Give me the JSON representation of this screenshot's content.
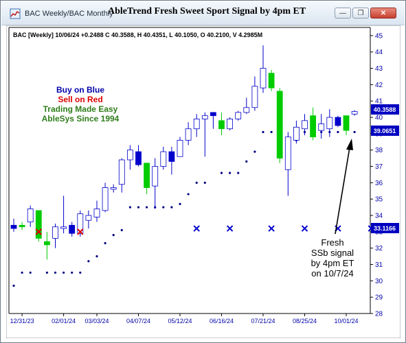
{
  "window": {
    "tab_title": "BAC Weekly/BAC Monthly",
    "title": "AbleTrend Fresh Sweet Sport Signal by 4pm ET",
    "buttons": [
      "minimize",
      "restore",
      "close"
    ]
  },
  "header": {
    "info": "BAC [Weekly] 10/06/24 +0.2488 C 40.3588, H 40.4351, L 40.1050, O 40.2100, V 4.2985M"
  },
  "legend": {
    "buy": "Buy on Blue",
    "sell": "Sell on Red",
    "tagline": "Trading Made Easy",
    "brand": "AbleSys Since 1994"
  },
  "annotation": {
    "lines": [
      "Fresh",
      "SSb signal",
      "by 4pm ET",
      "on 10/7/24"
    ]
  },
  "price_tags": {
    "close": "40.3588",
    "mid": "39.0651",
    "stop": "33.1166"
  },
  "colors": {
    "up_blue": "#0000cc",
    "down_red": "#e00000",
    "green": "#00cc00",
    "dot": "#00007f",
    "tag_bg": "#0000c0",
    "tag_fg": "#ffffff",
    "axis_text": "#0000aa",
    "legend_blue": "#0000aa",
    "legend_red": "#dd0000",
    "legend_green": "#2e7d1a"
  },
  "chart_data": {
    "type": "candlestick",
    "ylim": [
      28,
      45.5
    ],
    "yticks": [
      28,
      29,
      30,
      31,
      32,
      33,
      34,
      35,
      36,
      37,
      38,
      39,
      40,
      41,
      42,
      43,
      44,
      45
    ],
    "xtick_labels": [
      "12/31/23",
      "02/01/24",
      "03/03/24",
      "04/07/24",
      "05/12/24",
      "06/16/24",
      "07/21/24",
      "08/25/24",
      "10/01/24"
    ],
    "xtick_index": [
      1,
      6,
      10,
      15,
      20,
      25,
      30,
      35,
      40
    ],
    "candles": [
      {
        "o": 33.4,
        "h": 33.8,
        "l": 33.0,
        "c": 33.2,
        "color": "blue"
      },
      {
        "o": 33.4,
        "h": 33.6,
        "l": 33.1,
        "c": 33.3,
        "color": "green"
      },
      {
        "o": 33.6,
        "h": 34.6,
        "l": 33.3,
        "c": 34.4,
        "color": "white"
      },
      {
        "o": 34.3,
        "h": 34.3,
        "l": 32.4,
        "c": 32.6,
        "color": "green"
      },
      {
        "o": 32.2,
        "h": 33.0,
        "l": 31.3,
        "c": 32.4,
        "color": "green"
      },
      {
        "o": 32.6,
        "h": 33.5,
        "l": 32.0,
        "c": 33.3,
        "color": "white"
      },
      {
        "o": 33.3,
        "h": 35.2,
        "l": 32.9,
        "c": 33.2,
        "color": "white"
      },
      {
        "o": 33.4,
        "h": 33.6,
        "l": 32.7,
        "c": 32.9,
        "color": "blue"
      },
      {
        "o": 32.9,
        "h": 34.3,
        "l": 32.7,
        "c": 34.1,
        "color": "white"
      },
      {
        "o": 34.0,
        "h": 34.3,
        "l": 33.2,
        "c": 33.7,
        "color": "white"
      },
      {
        "o": 33.9,
        "h": 34.9,
        "l": 33.6,
        "c": 34.4,
        "color": "white"
      },
      {
        "o": 34.3,
        "h": 36.0,
        "l": 34.2,
        "c": 35.7,
        "color": "white"
      },
      {
        "o": 35.6,
        "h": 35.9,
        "l": 35.4,
        "c": 35.7,
        "color": "white"
      },
      {
        "o": 35.9,
        "h": 37.5,
        "l": 35.4,
        "c": 37.4,
        "color": "white"
      },
      {
        "o": 37.4,
        "h": 38.3,
        "l": 36.8,
        "c": 38.0,
        "color": "white"
      },
      {
        "o": 37.9,
        "h": 38.3,
        "l": 37.0,
        "c": 37.1,
        "color": "blue"
      },
      {
        "o": 37.2,
        "h": 37.2,
        "l": 35.3,
        "c": 35.7,
        "color": "green"
      },
      {
        "o": 35.8,
        "h": 37.5,
        "l": 34.4,
        "c": 37.0,
        "color": "white"
      },
      {
        "o": 37.0,
        "h": 38.2,
        "l": 36.8,
        "c": 37.9,
        "color": "white"
      },
      {
        "o": 37.9,
        "h": 38.2,
        "l": 36.5,
        "c": 37.3,
        "color": "blue"
      },
      {
        "o": 37.6,
        "h": 38.8,
        "l": 37.6,
        "c": 38.6,
        "color": "white"
      },
      {
        "o": 38.6,
        "h": 39.7,
        "l": 38.3,
        "c": 39.3,
        "color": "white"
      },
      {
        "o": 39.3,
        "h": 40.2,
        "l": 38.8,
        "c": 39.9,
        "color": "white"
      },
      {
        "o": 39.9,
        "h": 40.3,
        "l": 37.6,
        "c": 40.1,
        "color": "white"
      },
      {
        "o": 40.3,
        "h": 40.3,
        "l": 39.3,
        "c": 40.1,
        "color": "blue"
      },
      {
        "o": 39.8,
        "h": 40.3,
        "l": 38.9,
        "c": 39.3,
        "color": "green"
      },
      {
        "o": 39.3,
        "h": 40.0,
        "l": 39.2,
        "c": 39.9,
        "color": "white"
      },
      {
        "o": 39.9,
        "h": 40.4,
        "l": 39.8,
        "c": 40.3,
        "color": "white"
      },
      {
        "o": 40.3,
        "h": 41.2,
        "l": 40.2,
        "c": 40.6,
        "color": "white"
      },
      {
        "o": 40.6,
        "h": 42.5,
        "l": 40.4,
        "c": 41.9,
        "color": "white"
      },
      {
        "o": 41.8,
        "h": 44.4,
        "l": 41.5,
        "c": 43.0,
        "color": "white"
      },
      {
        "o": 42.7,
        "h": 42.9,
        "l": 41.6,
        "c": 41.8,
        "color": "green"
      },
      {
        "o": 41.6,
        "h": 41.8,
        "l": 37.2,
        "c": 37.5,
        "color": "green"
      },
      {
        "o": 36.8,
        "h": 39.1,
        "l": 35.2,
        "c": 38.8,
        "color": "white"
      },
      {
        "o": 38.6,
        "h": 39.8,
        "l": 38.4,
        "c": 39.4,
        "color": "white"
      },
      {
        "o": 39.3,
        "h": 40.2,
        "l": 38.9,
        "c": 39.8,
        "color": "white"
      },
      {
        "o": 40.1,
        "h": 40.6,
        "l": 38.6,
        "c": 38.8,
        "color": "green"
      },
      {
        "o": 39.6,
        "h": 40.2,
        "l": 38.7,
        "c": 39.2,
        "color": "white"
      },
      {
        "o": 39.3,
        "h": 40.5,
        "l": 38.8,
        "c": 40.0,
        "color": "white"
      },
      {
        "o": 40.0,
        "h": 40.1,
        "l": 39.4,
        "c": 39.5,
        "color": "blue"
      },
      {
        "o": 40.1,
        "h": 40.1,
        "l": 38.9,
        "c": 39.2,
        "color": "green"
      },
      {
        "o": 40.2,
        "h": 40.44,
        "l": 40.1,
        "c": 40.36,
        "color": "white"
      }
    ],
    "stop_dots": [
      29.7,
      30.5,
      30.5,
      null,
      30.5,
      30.5,
      30.5,
      30.5,
      30.5,
      31.2,
      31.5,
      32.3,
      32.8,
      33.1,
      34.5,
      34.5,
      34.5,
      34.5,
      34.5,
      34.5,
      34.7,
      35.3,
      36.0,
      36.0,
      null,
      36.6,
      36.6,
      36.6,
      37.3,
      37.9,
      39.1,
      39.1,
      39.1,
      null,
      38.6,
      39.1,
      39.1,
      39.1,
      39.1,
      39.1,
      null,
      39.1
    ],
    "x_markers": [
      {
        "i": 3,
        "price": 33.0,
        "color": "red"
      },
      {
        "i": 8,
        "price": 33.0,
        "color": "red"
      },
      {
        "i": 22,
        "price": 33.2,
        "color": "blue"
      },
      {
        "i": 26,
        "price": 33.2,
        "color": "blue"
      },
      {
        "i": 31,
        "price": 33.2,
        "color": "blue"
      },
      {
        "i": 35,
        "price": 33.2,
        "color": "blue"
      },
      {
        "i": 39,
        "price": 33.2,
        "color": "blue"
      },
      {
        "i": 43,
        "price": 33.2,
        "color": "blue"
      }
    ]
  }
}
